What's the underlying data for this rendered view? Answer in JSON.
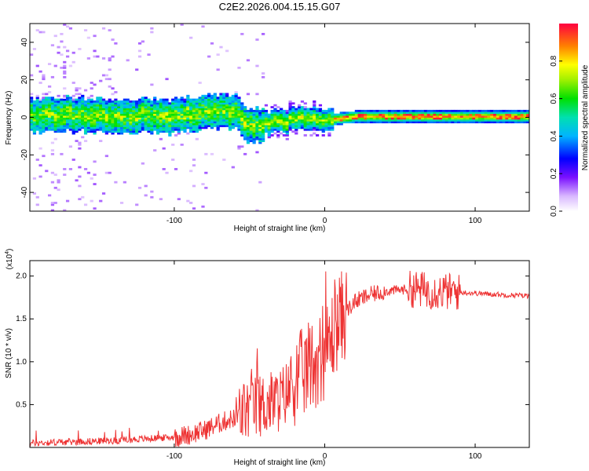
{
  "title": "C2E2.2026.004.15.15.G07",
  "colors": {
    "snr_line": "#ee3333",
    "axis": "#000000"
  },
  "chart_data": [
    {
      "type": "heatmap",
      "title": "C2E2.2026.004.15.15.G07",
      "xlabel": "Height of straight line (km)",
      "ylabel": "Frequency (Hz)",
      "xlim": [
        -196,
        136
      ],
      "ylim": [
        -50,
        50
      ],
      "xticks": [
        {
          "value": -100,
          "label": "-100"
        },
        {
          "value": 0,
          "label": "0"
        },
        {
          "value": 100,
          "label": "100"
        }
      ],
      "yticks": [
        {
          "value": -40,
          "label": "-40"
        },
        {
          "value": -20,
          "label": "-20"
        },
        {
          "value": 0,
          "label": "0"
        },
        {
          "value": 20,
          "label": "20"
        },
        {
          "value": 40,
          "label": "40"
        }
      ],
      "colorbar": {
        "label": "Normalized spectral amplitude",
        "range": [
          0,
          1
        ],
        "ticks": [
          {
            "value": 0.0,
            "label": "0.0"
          },
          {
            "value": 0.2,
            "label": "0.2"
          },
          {
            "value": 0.4,
            "label": "0.4"
          },
          {
            "value": 0.6,
            "label": "0.6"
          },
          {
            "value": 0.8,
            "label": "0.8"
          }
        ]
      },
      "ridge_center_hz": [
        {
          "x": -196,
          "y": 1
        },
        {
          "x": -150,
          "y": 1
        },
        {
          "x": -110,
          "y": 0
        },
        {
          "x": -80,
          "y": 2
        },
        {
          "x": -60,
          "y": 2
        },
        {
          "x": -50,
          "y": -5
        },
        {
          "x": -30,
          "y": -3
        },
        {
          "x": -15,
          "y": 0
        },
        {
          "x": 0,
          "y": -2
        },
        {
          "x": 20,
          "y": 0
        },
        {
          "x": 60,
          "y": 0
        },
        {
          "x": 100,
          "y": 0
        },
        {
          "x": 136,
          "y": 0
        }
      ]
    },
    {
      "type": "line",
      "xlabel": "Height of straight line (km)",
      "ylabel": "SNR (10 * v/v)",
      "y_scale_label": "(x10",
      "y_scale_exp": "4",
      "y_scale_close": ")",
      "xlim": [
        -196,
        136
      ],
      "ylim": [
        0,
        2.18
      ],
      "xticks": [
        {
          "value": -100,
          "label": "-100"
        },
        {
          "value": 0,
          "label": "0"
        },
        {
          "value": 100,
          "label": "100"
        }
      ],
      "yticks": [
        {
          "value": 0.5,
          "label": "0.5"
        },
        {
          "value": 1.0,
          "label": "1.0"
        },
        {
          "value": 1.5,
          "label": "1.5"
        },
        {
          "value": 2.0,
          "label": "2.0"
        }
      ],
      "series": [
        {
          "name": "SNR",
          "x": [
            -196,
            -180,
            -160,
            -140,
            -120,
            -100,
            -90,
            -80,
            -70,
            -60,
            -50,
            -40,
            -30,
            -20,
            -10,
            0,
            5,
            10,
            20,
            30,
            40,
            50,
            60,
            70,
            80,
            90,
            100,
            110,
            120,
            136
          ],
          "y": [
            0.05,
            0.06,
            0.07,
            0.08,
            0.1,
            0.12,
            0.15,
            0.2,
            0.28,
            0.35,
            0.45,
            0.5,
            0.55,
            0.75,
            0.95,
            1.1,
            1.3,
            1.5,
            1.7,
            1.78,
            1.82,
            1.84,
            1.85,
            1.83,
            1.82,
            1.81,
            1.8,
            1.79,
            1.78,
            1.77
          ]
        }
      ]
    }
  ]
}
